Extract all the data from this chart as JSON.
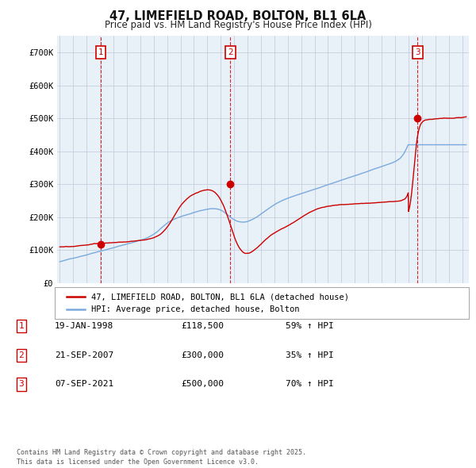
{
  "title": "47, LIMEFIELD ROAD, BOLTON, BL1 6LA",
  "subtitle": "Price paid vs. HM Land Registry's House Price Index (HPI)",
  "ylim": [
    0,
    750000
  ],
  "yticks": [
    0,
    100000,
    200000,
    300000,
    400000,
    500000,
    600000,
    700000
  ],
  "ytick_labels": [
    "£0",
    "£100K",
    "£200K",
    "£300K",
    "£400K",
    "£500K",
    "£600K",
    "£700K"
  ],
  "xlim_start": 1994.8,
  "xlim_end": 2025.5,
  "sale_color": "#cc0000",
  "hpi_color": "#7aaadd",
  "plot_bg": "#e8f0f8",
  "sale_label": "47, LIMEFIELD ROAD, BOLTON, BL1 6LA (detached house)",
  "hpi_label": "HPI: Average price, detached house, Bolton",
  "transactions": [
    {
      "num": 1,
      "price": 118500,
      "date_x": 1998.05
    },
    {
      "num": 2,
      "price": 300000,
      "date_x": 2007.72
    },
    {
      "num": 3,
      "price": 500000,
      "date_x": 2021.68
    }
  ],
  "table_rows": [
    {
      "num": "1",
      "date": "19-JAN-1998",
      "price": "£118,500",
      "pct": "59% ↑ HPI"
    },
    {
      "num": "2",
      "date": "21-SEP-2007",
      "price": "£300,000",
      "pct": "35% ↑ HPI"
    },
    {
      "num": "3",
      "date": "07-SEP-2021",
      "price": "£500,000",
      "pct": "70% ↑ HPI"
    }
  ],
  "footer": "Contains HM Land Registry data © Crown copyright and database right 2025.\nThis data is licensed under the Open Government Licence v3.0.",
  "bg_color": "#ffffff",
  "grid_color": "#c0c8d8"
}
